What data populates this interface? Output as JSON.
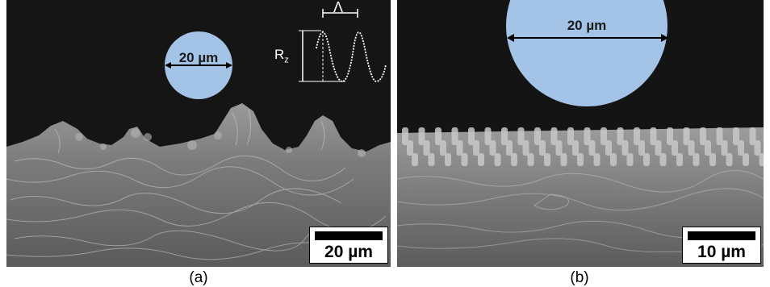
{
  "panels": [
    {
      "caption": "(a)",
      "circle_label": "20 µm",
      "circle_color": "#a3c4e6",
      "scale_bar_label": "20 µm",
      "inset": {
        "amplitude_label": "R",
        "amplitude_subscript": "z",
        "period_label": "Λ"
      }
    },
    {
      "caption": "(b)",
      "circle_label": "20 µm",
      "circle_color": "#a3c4e6",
      "scale_bar_label": "10 µm"
    }
  ]
}
